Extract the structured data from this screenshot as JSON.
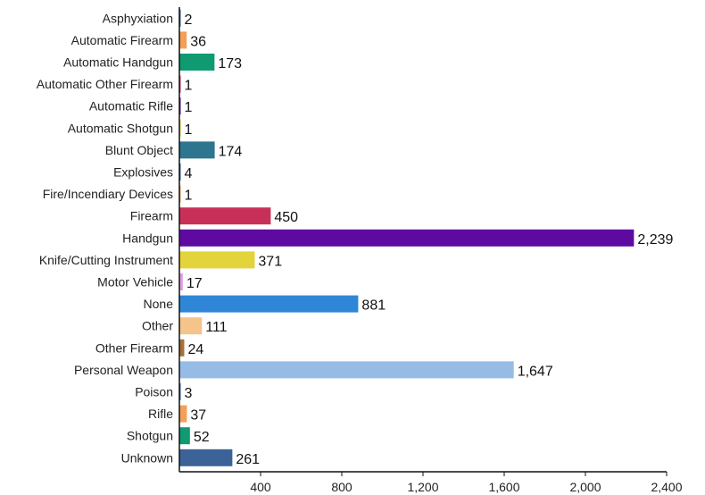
{
  "chart_data": {
    "type": "bar",
    "orientation": "horizontal",
    "title": "",
    "xlabel": "",
    "ylabel": "",
    "xlim": [
      0,
      2400
    ],
    "xticks": [
      400,
      800,
      1200,
      1600,
      2000,
      2400
    ],
    "xtick_labels": [
      "400",
      "800",
      "1,200",
      "1,600",
      "2,000",
      "2,400"
    ],
    "grid": false,
    "legend": "none",
    "categories": [
      "Asphyxiation",
      "Automatic Firearm",
      "Automatic Handgun",
      "Automatic Other Firearm",
      "Automatic Rifle",
      "Automatic Shotgun",
      "Blunt Object",
      "Explosives",
      "Fire/Incendiary Devices",
      "Firearm",
      "Handgun",
      "Knife/Cutting Instrument",
      "Motor Vehicle",
      "None",
      "Other",
      "Other Firearm",
      "Personal Weapon",
      "Poison",
      "Rifle",
      "Shotgun",
      "Unknown"
    ],
    "values": [
      2,
      36,
      173,
      1,
      1,
      1,
      174,
      4,
      1,
      450,
      2239,
      371,
      17,
      881,
      111,
      24,
      1647,
      3,
      37,
      52,
      261
    ],
    "value_labels": [
      "2",
      "36",
      "173",
      "1",
      "1",
      "1",
      "174",
      "4",
      "1",
      "450",
      "2,239",
      "371",
      "17",
      "881",
      "111",
      "24",
      "1,647",
      "3",
      "37",
      "52",
      "261"
    ],
    "colors": [
      "#3b6398",
      "#f2a058",
      "#0f9a72",
      "#c93a5e",
      "#5e1a99",
      "#e0cf3a",
      "#2e7590",
      "#3b6398",
      "#f2a058",
      "#c8305a",
      "#5e0aa0",
      "#e2d43a",
      "#e0a0e0",
      "#2f86d6",
      "#f5c48a",
      "#a4713a",
      "#96bce6",
      "#3b6398",
      "#f2a058",
      "#0f9a72",
      "#3b6398"
    ]
  }
}
